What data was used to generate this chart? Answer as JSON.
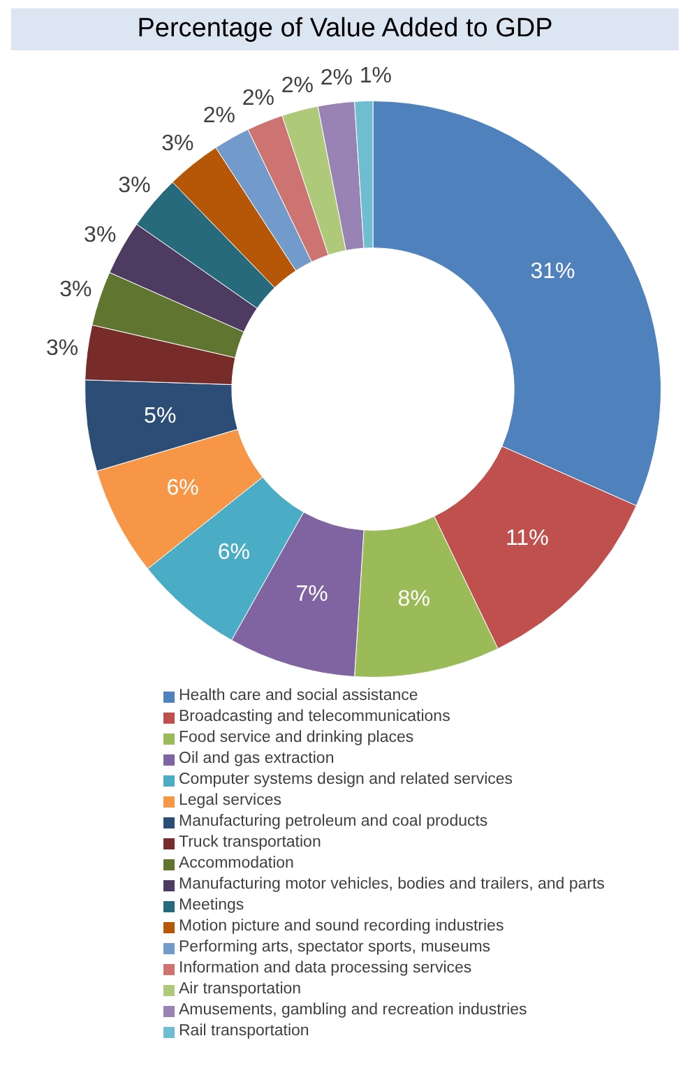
{
  "chart_data": {
    "type": "donut",
    "title": "Percentage of Value Added to GDP",
    "categories": [
      "Health care and social assistance",
      "Broadcasting and telecommunications",
      "Food service and drinking places",
      "Oil and gas extraction",
      "Computer systems design and related services",
      "Legal services",
      "Manufacturing petroleum and coal products",
      "Truck transportation",
      "Accommodation",
      "Manufacturing motor vehicles, bodies and trailers, and parts",
      "Meetings",
      "Motion picture and sound recording industries",
      "Performing arts, spectator sports, museums",
      "Information and data processing services",
      "Air transportation",
      "Amusements, gambling and recreation industries",
      "Rail transportation"
    ],
    "values": [
      31,
      11,
      8,
      7,
      6,
      6,
      5,
      3,
      3,
      3,
      3,
      3,
      2,
      2,
      2,
      2,
      1
    ],
    "value_labels": [
      "31%",
      "11%",
      "8%",
      "7%",
      "6%",
      "6%",
      "5%",
      "3%",
      "3%",
      "3%",
      "3%",
      "3%",
      "2%",
      "2%",
      "2%",
      "2%",
      "1%"
    ],
    "colors": [
      "#4f81bd",
      "#c0504d",
      "#9bbb59",
      "#8064a2",
      "#4bacc6",
      "#f79646",
      "#2c4d75",
      "#772c2a",
      "#5f7530",
      "#4d3b62",
      "#276a7c",
      "#b65708",
      "#729aca",
      "#cd7371",
      "#afc97a",
      "#9983b5",
      "#6fbdd1"
    ],
    "legend": "bottom"
  }
}
